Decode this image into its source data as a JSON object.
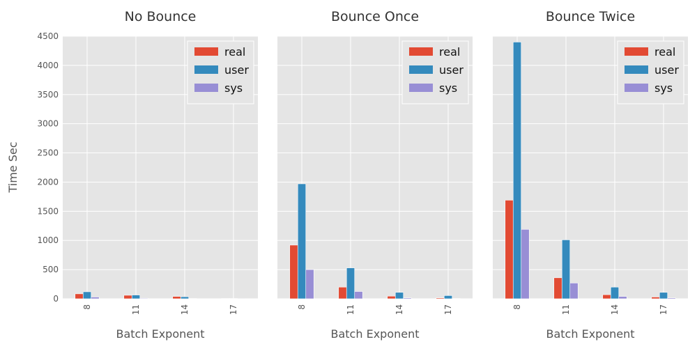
{
  "figure": {
    "ylabel": "Time Sec",
    "xlabel": "Batch Exponent",
    "legend": [
      "real",
      "user",
      "sys"
    ]
  },
  "colors": {
    "real": "#E24A33",
    "user": "#348ABD",
    "sys": "#988ED5",
    "panel_bg": "#E5E5E5",
    "grid": "#FFFFFF"
  },
  "chart_data": [
    {
      "type": "bar",
      "title": "No Bounce",
      "xlabel": "Batch Exponent",
      "ylabel": "Time Sec",
      "categories": [
        "8",
        "11",
        "14",
        "17"
      ],
      "ylim": [
        0,
        4500
      ],
      "yticks": [
        0,
        500,
        1000,
        1500,
        2000,
        2500,
        3000,
        3500,
        4000,
        4500
      ],
      "grid": true,
      "legend_position": "top-right",
      "series": [
        {
          "name": "real",
          "values": [
            85,
            60,
            40,
            5
          ]
        },
        {
          "name": "user",
          "values": [
            120,
            65,
            35,
            5
          ]
        },
        {
          "name": "sys",
          "values": [
            30,
            10,
            5,
            2
          ]
        }
      ]
    },
    {
      "type": "bar",
      "title": "Bounce Once",
      "xlabel": "Batch Exponent",
      "ylabel": "",
      "categories": [
        "8",
        "11",
        "14",
        "17"
      ],
      "ylim": [
        0,
        4500
      ],
      "grid": true,
      "legend_position": "top-right",
      "series": [
        {
          "name": "real",
          "values": [
            920,
            200,
            45,
            15
          ]
        },
        {
          "name": "user",
          "values": [
            1970,
            530,
            110,
            55
          ]
        },
        {
          "name": "sys",
          "values": [
            500,
            125,
            15,
            5
          ]
        }
      ]
    },
    {
      "type": "bar",
      "title": "Bounce Twice",
      "xlabel": "Batch Exponent",
      "ylabel": "",
      "categories": [
        "8",
        "11",
        "14",
        "17"
      ],
      "ylim": [
        0,
        4500
      ],
      "grid": true,
      "legend_position": "top-right",
      "series": [
        {
          "name": "real",
          "values": [
            1690,
            360,
            70,
            30
          ]
        },
        {
          "name": "user",
          "values": [
            4400,
            1010,
            200,
            110
          ]
        },
        {
          "name": "sys",
          "values": [
            1190,
            270,
            40,
            15
          ]
        }
      ]
    }
  ]
}
